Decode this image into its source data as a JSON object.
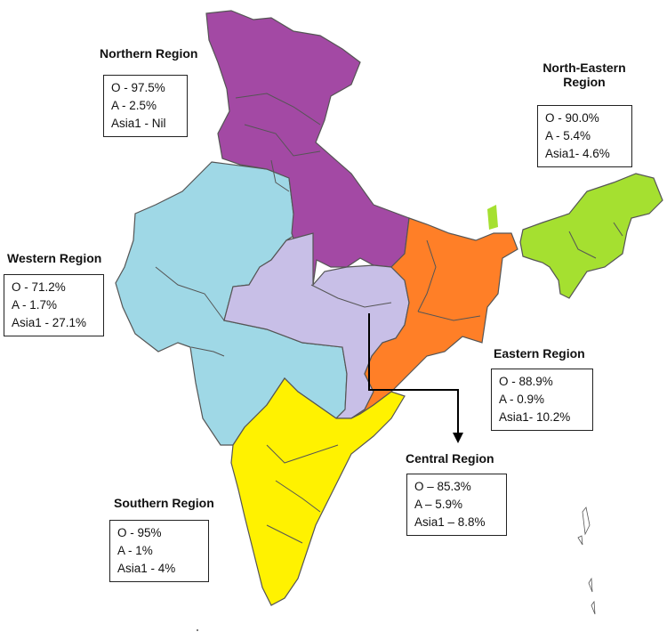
{
  "colors": {
    "northern": "#a349a4",
    "western": "#9fd8e6",
    "central": "#c8bfe7",
    "eastern": "#ff7f27",
    "north_eastern": "#a5e030",
    "southern": "#fff200",
    "border": "#555555"
  },
  "regions": {
    "northern": {
      "title": "Northern Region",
      "o": "O - 97.5%",
      "a": "A - 2.5%",
      "asia1": "Asia1 - Nil"
    },
    "north_eastern": {
      "title_line1": "North-Eastern",
      "title_line2": "Region",
      "o": "O - 90.0%",
      "a": "A - 5.4%",
      "asia1": "Asia1- 4.6%"
    },
    "western": {
      "title": "Western Region",
      "o": "O - 71.2%",
      "a": "A - 1.7%",
      "asia1": "Asia1 - 27.1%"
    },
    "eastern": {
      "title": "Eastern Region",
      "o": "O - 88.9%",
      "a": "A - 0.9%",
      "asia1": "Asia1- 10.2%"
    },
    "central": {
      "title": "Central Region",
      "o": "O – 85.3%",
      "a": "A – 5.9%",
      "asia1": "Asia1 – 8.8%"
    },
    "southern": {
      "title": "Southern Region",
      "o": "O - 95%",
      "a": "A - 1%",
      "asia1": "Asia1 - 4%"
    }
  }
}
